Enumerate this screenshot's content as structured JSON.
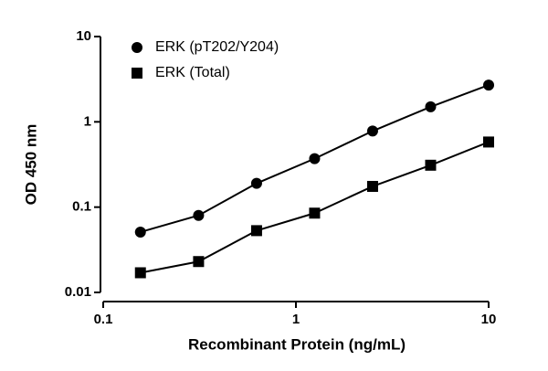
{
  "chart_data": {
    "type": "scatter",
    "x_label": "Recombinant Protein (ng/mL)",
    "y_label": "OD 450 nm",
    "x": [
      0.156,
      0.3125,
      0.625,
      1.25,
      2.5,
      5,
      10
    ],
    "series": [
      {
        "name": "ERK (pT202/Y204)",
        "color": "#000000",
        "marker": "circle",
        "values": [
          0.051,
          0.08,
          0.19,
          0.37,
          0.78,
          1.5,
          2.7
        ]
      },
      {
        "name": "ERK (Total)",
        "color": "#000000",
        "marker": "square",
        "values": [
          0.017,
          0.023,
          0.053,
          0.085,
          0.175,
          0.31,
          0.58
        ]
      }
    ],
    "xlim": [
      0.1,
      10
    ],
    "ylim": [
      0.01,
      10
    ],
    "xticks": [
      0.1,
      1,
      10
    ],
    "yticks": [
      0.01,
      0.1,
      1,
      10
    ],
    "xlog": true,
    "ylog": true,
    "legend": "top-left"
  }
}
